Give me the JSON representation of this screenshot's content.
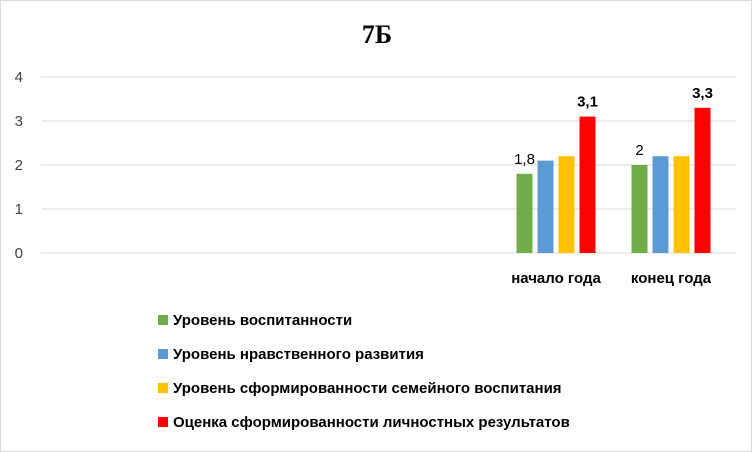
{
  "chart_data": {
    "type": "bar",
    "title": "7Б",
    "categories": [
      "начало года",
      "конец года"
    ],
    "ylim": [
      0,
      4
    ],
    "yticks": [
      0,
      1,
      2,
      3,
      4
    ],
    "grid": true,
    "legend_position": "bottom",
    "series": [
      {
        "name": "Уровень воспитанности",
        "color": "#70ad47",
        "values": [
          1.8,
          2.0
        ]
      },
      {
        "name": "Уровень нравственного развития",
        "color": "#5b9bd5",
        "values": [
          2.1,
          2.2
        ]
      },
      {
        "name": "Уровень сформированности семейного воспитания",
        "color": "#ffc000",
        "values": [
          2.2,
          2.2
        ]
      },
      {
        "name": "Оценка сформированности личностных результатов",
        "color": "#ff0000",
        "values": [
          3.1,
          3.3
        ]
      }
    ],
    "data_labels": [
      {
        "series": 0,
        "category": 0,
        "text": "1,8",
        "bold": false
      },
      {
        "series": 3,
        "category": 0,
        "text": "3,1",
        "bold": true
      },
      {
        "series": 0,
        "category": 1,
        "text": "2",
        "bold": false
      },
      {
        "series": 3,
        "category": 1,
        "text": "3,3",
        "bold": true
      }
    ]
  }
}
